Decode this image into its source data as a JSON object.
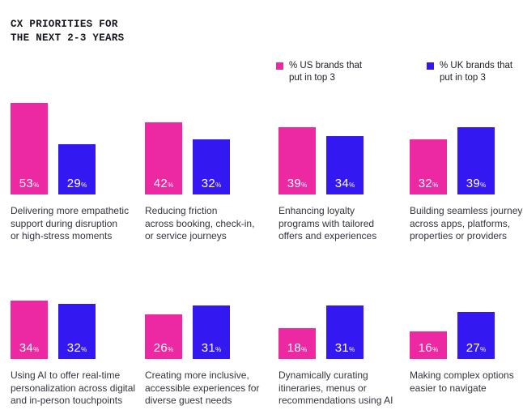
{
  "title": {
    "line1": "CX PRIORITIES FOR",
    "line2": "THE NEXT 2-3 YEARS"
  },
  "legend": {
    "items": [
      {
        "lines": [
          "% US brands that",
          "put in top 3"
        ]
      },
      {
        "lines": [
          "% UK brands that",
          "put in top 3"
        ]
      }
    ]
  },
  "colors": {
    "us_pink": "#EC28A2",
    "uk_blue": "#3318F2",
    "title_text": "#17161f",
    "caption_text": "#35343e",
    "value_text": "#ffffff",
    "background": "#ffffff"
  },
  "chart_data": {
    "type": "bar",
    "title": "CX PRIORITIES FOR THE NEXT 2-3 YEARS",
    "unit": "%",
    "categories": [
      "Delivering more empathetic support during disruption or high-stress moments",
      "Reducing friction across booking, check-in, or service journeys",
      "Enhancing loyalty programs with tailored offers and experiences",
      "Building seamless journeys across apps, platforms, properties or providers",
      "Using AI to offer real-time personalization across digital and in-person touchpoints",
      "Creating more inclusive, accessible experiences for diverse guest needs",
      "Dynamically curating itineraries, menus or recommendations using AI",
      "Making complex options easier to navigate"
    ],
    "category_lines": [
      [
        "Delivering more empathetic",
        "support during disruption",
        "or high-stress moments"
      ],
      [
        "Reducing friction",
        "across booking, check-in,",
        "or service journeys"
      ],
      [
        "Enhancing loyalty",
        "programs with tailored",
        "offers and experiences"
      ],
      [
        "Building seamless journeys",
        "across apps, platforms,",
        "properties or providers"
      ],
      [
        "Using AI to offer real-time",
        "personalization across digital",
        "and in-person touchpoints"
      ],
      [
        "Creating more inclusive,",
        "accessible experiences for",
        "diverse guest needs"
      ],
      [
        "Dynamically curating",
        "itineraries, menus or",
        "recommendations using AI"
      ],
      [
        "Making complex options",
        "easier to navigate"
      ]
    ],
    "series": [
      {
        "name": "% US brands that put in top 3",
        "color": "#EC28A2",
        "values": [
          53,
          42,
          39,
          32,
          34,
          26,
          18,
          16
        ]
      },
      {
        "name": "% UK brands that put in top 3",
        "color": "#3318F2",
        "values": [
          29,
          32,
          34,
          39,
          32,
          31,
          31,
          27
        ]
      }
    ],
    "value_labels": "inside-bottom",
    "legend_position": "top-right",
    "grid": false,
    "axes_shown": false,
    "ylim": [
      0,
      56
    ],
    "layout_hint": "2 rows x 4 grouped bar pairs"
  }
}
